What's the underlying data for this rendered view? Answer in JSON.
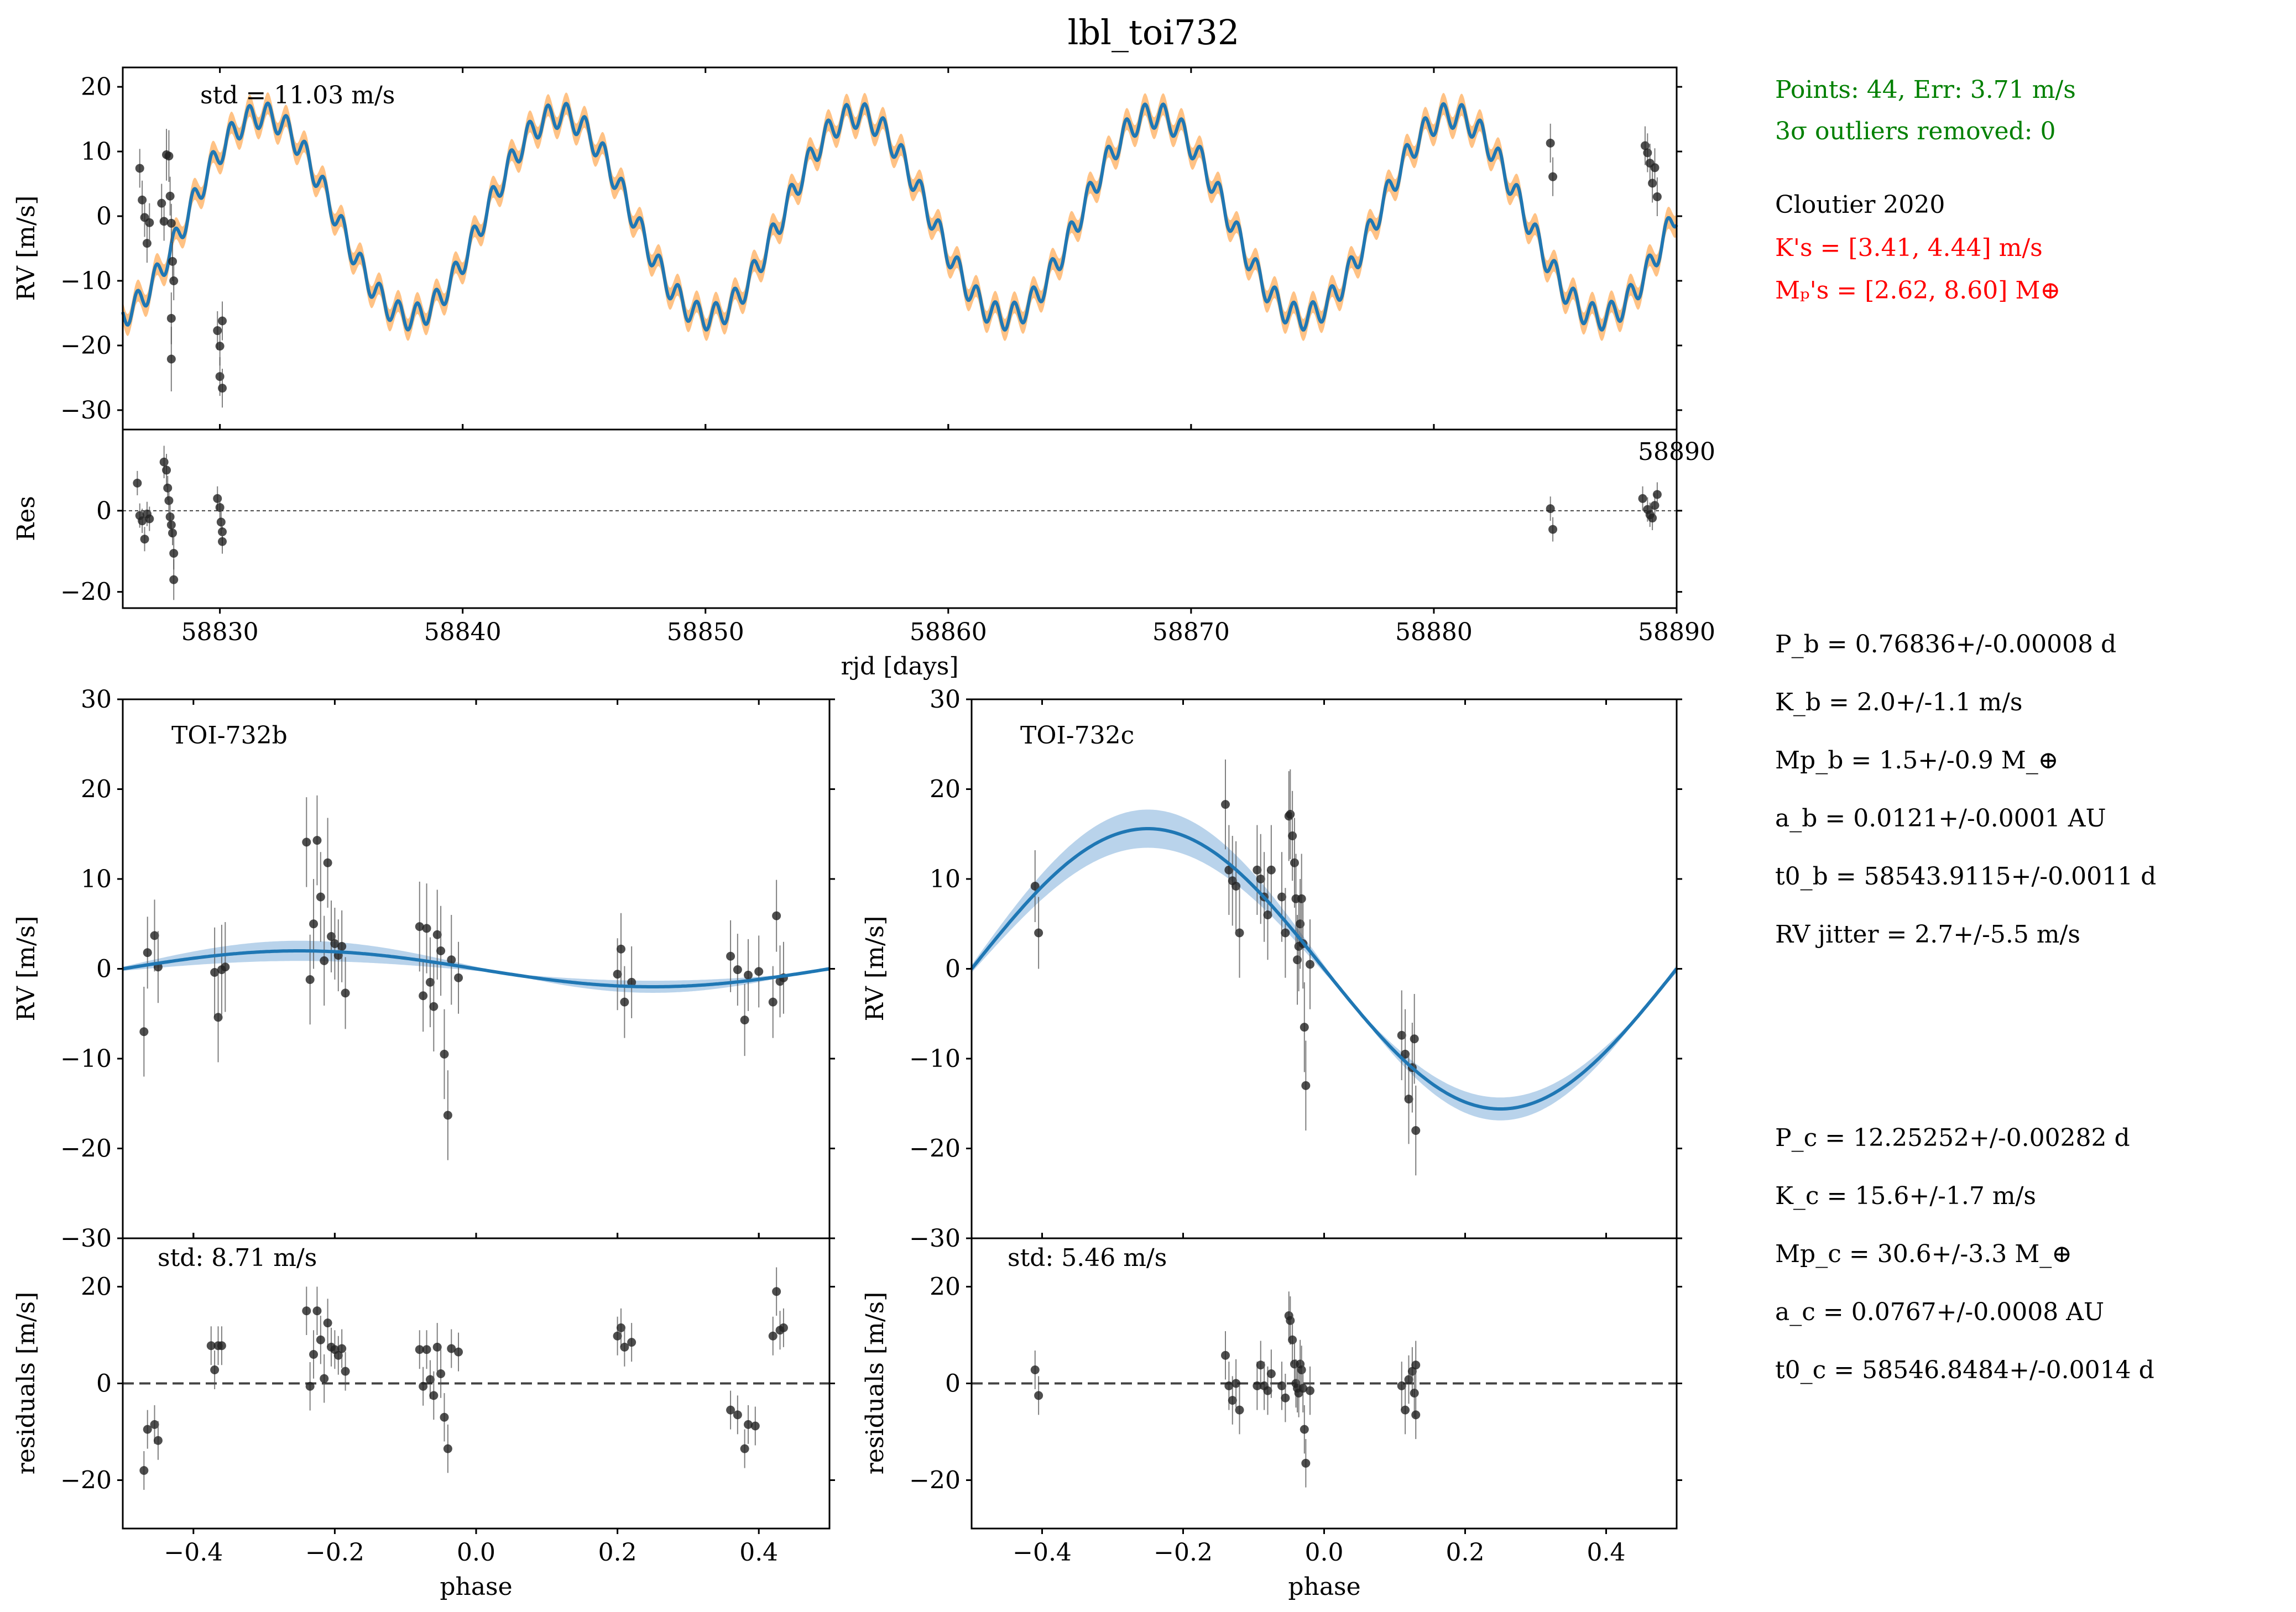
{
  "title": "lbl_toi732",
  "colors": {
    "model": "#1f77b4",
    "band_top": "#ffbb78",
    "band_phase": "#a8c8e6",
    "point": "#222222",
    "green": "#008000",
    "red": "#ff0000"
  },
  "sidebar": {
    "summary": {
      "points_text": "Points: 44, Err: 3.71 m/s",
      "outliers_text": "3σ outliers removed: 0"
    },
    "reference": {
      "name": "Cloutier 2020",
      "k_text": "K's = [3.41, 4.44] m/s",
      "mp_text": "Mₚ's = [2.62, 8.60] M⊕"
    },
    "planet_b": [
      "P_b = 0.76836+/-0.00008 d",
      "K_b = 2.0+/-1.1 m/s",
      "Mp_b = 1.5+/-0.9 M_⊕",
      "a_b = 0.0121+/-0.0001 AU",
      "t0_b = 58543.9115+/-0.0011 d",
      "RV jitter = 2.7+/-5.5 m/s"
    ],
    "planet_c": [
      "P_c = 12.25252+/-0.00282 d",
      "K_c = 15.6+/-1.7 m/s",
      "Mp_c = 30.6+/-3.3 M_⊕",
      "a_c = 0.0767+/-0.0008 AU",
      "t0_c = 58546.8484+/-0.0014 d"
    ]
  },
  "chart_data": [
    {
      "id": "rv_time",
      "type": "line",
      "ylabel": "RV [m/s]",
      "annotation": "std = 11.03 m/s",
      "xlim": [
        58826,
        58890
      ],
      "ylim": [
        -33,
        23
      ],
      "yticks": [
        -30,
        -20,
        -10,
        0,
        10,
        20
      ],
      "stray_tick_label": "58890",
      "model": {
        "K_b": 2.0,
        "P_b": 0.76836,
        "K_c": 15.6,
        "P_c": 12.25252,
        "t0_c": 58546.8484
      },
      "points": [
        [
          58826.7,
          7.4,
          3
        ],
        [
          58826.8,
          2.5,
          3
        ],
        [
          58826.9,
          -0.2,
          3
        ],
        [
          58827.0,
          -4.2,
          3
        ],
        [
          58827.1,
          -1.0,
          3
        ],
        [
          58827.6,
          2.0,
          3
        ],
        [
          58827.7,
          -0.8,
          3
        ],
        [
          58827.8,
          9.5,
          4
        ],
        [
          58827.9,
          9.3,
          4
        ],
        [
          58827.95,
          3.1,
          3
        ],
        [
          58828.0,
          -1.1,
          3
        ],
        [
          58828.05,
          -7.0,
          3
        ],
        [
          58828.1,
          -10.0,
          3
        ],
        [
          58828.0,
          -15.8,
          4
        ],
        [
          58828.0,
          -22.1,
          5
        ],
        [
          58829.9,
          -17.7,
          3
        ],
        [
          58830.0,
          -20.1,
          3
        ],
        [
          58830.0,
          -24.8,
          3
        ],
        [
          58830.1,
          -26.6,
          3
        ],
        [
          58830.1,
          -16.2,
          3
        ],
        [
          58884.8,
          11.3,
          3
        ],
        [
          58884.9,
          6.1,
          3
        ],
        [
          58888.7,
          10.9,
          3
        ],
        [
          58888.8,
          9.8,
          3
        ],
        [
          58888.9,
          8.2,
          3
        ],
        [
          58889.0,
          5.1,
          3
        ],
        [
          58889.1,
          7.5,
          3
        ],
        [
          58889.2,
          3.0,
          3
        ]
      ]
    },
    {
      "id": "res_time",
      "type": "scatter",
      "ylabel": "Res",
      "xlabel": "rjd [days]",
      "xlim": [
        58826,
        58890
      ],
      "ylim": [
        -24,
        20
      ],
      "xticks": [
        58830,
        58840,
        58850,
        58860,
        58870,
        58880,
        58890
      ],
      "yticks": [
        -20,
        0
      ],
      "points": [
        [
          58826.6,
          6.8,
          3
        ],
        [
          58826.7,
          -1.2,
          3
        ],
        [
          58826.8,
          -2.5,
          3
        ],
        [
          58826.9,
          -7.0,
          3
        ],
        [
          58827.0,
          -0.8,
          3
        ],
        [
          58827.1,
          -2.0,
          3
        ],
        [
          58827.7,
          12.0,
          4
        ],
        [
          58827.8,
          10.0,
          4
        ],
        [
          58827.85,
          5.6,
          3
        ],
        [
          58827.9,
          2.5,
          3
        ],
        [
          58827.95,
          -1.5,
          3
        ],
        [
          58828.0,
          -3.5,
          3
        ],
        [
          58828.05,
          -5.5,
          3
        ],
        [
          58828.1,
          -10.5,
          4
        ],
        [
          58828.1,
          -17.0,
          5
        ],
        [
          58829.9,
          3.0,
          3
        ],
        [
          58830.0,
          0.8,
          3
        ],
        [
          58830.05,
          -2.8,
          3
        ],
        [
          58830.1,
          -5.2,
          3
        ],
        [
          58830.1,
          -7.6,
          3
        ],
        [
          58884.8,
          0.5,
          3
        ],
        [
          58884.9,
          -4.6,
          3
        ],
        [
          58888.6,
          3.0,
          3
        ],
        [
          58888.8,
          0.3,
          3
        ],
        [
          58888.9,
          -1.0,
          3
        ],
        [
          58889.0,
          -1.8,
          3
        ],
        [
          58889.1,
          1.3,
          3
        ],
        [
          58889.2,
          4.0,
          3
        ]
      ]
    },
    {
      "id": "phase_b",
      "type": "scatter",
      "ylabel": "RV [m/s]",
      "annotation": "TOI-732b",
      "xlim": [
        -0.5,
        0.5
      ],
      "ylim": [
        -30,
        30
      ],
      "yticks": [
        -30,
        -20,
        -10,
        0,
        10,
        20,
        30
      ],
      "model": {
        "K": 2.0,
        "band": 0.9
      },
      "points": [
        [
          -0.47,
          -7.0,
          5
        ],
        [
          -0.465,
          1.8,
          4
        ],
        [
          -0.455,
          3.7,
          4
        ],
        [
          -0.45,
          0.2,
          4
        ],
        [
          -0.37,
          -0.4,
          5
        ],
        [
          -0.365,
          -5.4,
          5
        ],
        [
          -0.36,
          -0.1,
          5
        ],
        [
          -0.355,
          0.2,
          5
        ],
        [
          -0.24,
          14.1,
          5
        ],
        [
          -0.235,
          -1.2,
          5
        ],
        [
          -0.23,
          5.0,
          5
        ],
        [
          -0.225,
          14.3,
          5
        ],
        [
          -0.22,
          8.0,
          5
        ],
        [
          -0.215,
          0.9,
          5
        ],
        [
          -0.21,
          11.8,
          5
        ],
        [
          -0.205,
          3.6,
          4
        ],
        [
          -0.2,
          2.8,
          4
        ],
        [
          -0.195,
          1.5,
          4
        ],
        [
          -0.19,
          2.5,
          4
        ],
        [
          -0.185,
          -2.7,
          4
        ],
        [
          -0.08,
          4.7,
          5
        ],
        [
          -0.075,
          -3.0,
          4
        ],
        [
          -0.07,
          4.5,
          5
        ],
        [
          -0.065,
          -1.5,
          5
        ],
        [
          -0.06,
          -4.2,
          5
        ],
        [
          -0.055,
          3.8,
          5
        ],
        [
          -0.05,
          2.0,
          5
        ],
        [
          -0.045,
          -9.5,
          5
        ],
        [
          -0.04,
          -16.3,
          5
        ],
        [
          -0.035,
          1.0,
          5
        ],
        [
          -0.025,
          -1.0,
          4
        ],
        [
          0.2,
          -0.6,
          4
        ],
        [
          0.205,
          2.2,
          4
        ],
        [
          0.21,
          -3.7,
          4
        ],
        [
          0.22,
          -1.5,
          4
        ],
        [
          0.36,
          1.4,
          4
        ],
        [
          0.37,
          -0.1,
          4
        ],
        [
          0.38,
          -5.7,
          4
        ],
        [
          0.385,
          -0.7,
          4
        ],
        [
          0.4,
          -0.3,
          4
        ],
        [
          0.42,
          -3.7,
          4
        ],
        [
          0.425,
          5.9,
          4
        ],
        [
          0.43,
          -1.4,
          4
        ],
        [
          0.435,
          -1.0,
          4
        ]
      ]
    },
    {
      "id": "phase_c",
      "type": "scatter",
      "ylabel": "RV [m/s]",
      "annotation": "TOI-732c",
      "xlim": [
        -0.5,
        0.5
      ],
      "ylim": [
        -30,
        30
      ],
      "yticks": [
        -30,
        -20,
        -10,
        0,
        10,
        20,
        30
      ],
      "model": {
        "K": 15.6,
        "band": 1.7
      },
      "points": [
        [
          -0.41,
          9.2,
          4
        ],
        [
          -0.405,
          4.0,
          4
        ],
        [
          -0.14,
          18.3,
          5
        ],
        [
          -0.135,
          11.0,
          5
        ],
        [
          -0.13,
          9.8,
          5
        ],
        [
          -0.125,
          9.2,
          5
        ],
        [
          -0.12,
          4.0,
          5
        ],
        [
          -0.095,
          11.0,
          5
        ],
        [
          -0.09,
          10.0,
          5
        ],
        [
          -0.085,
          8.0,
          5
        ],
        [
          -0.08,
          6.0,
          5
        ],
        [
          -0.075,
          11.0,
          5
        ],
        [
          -0.06,
          8.0,
          5
        ],
        [
          -0.055,
          4.0,
          5
        ],
        [
          -0.05,
          17.0,
          5
        ],
        [
          -0.048,
          17.2,
          5
        ],
        [
          -0.045,
          14.8,
          5
        ],
        [
          -0.042,
          11.8,
          5
        ],
        [
          -0.04,
          7.8,
          5
        ],
        [
          -0.038,
          1.0,
          5
        ],
        [
          -0.036,
          2.5,
          5
        ],
        [
          -0.034,
          5.0,
          5
        ],
        [
          -0.032,
          7.8,
          5
        ],
        [
          -0.03,
          2.8,
          5
        ],
        [
          -0.028,
          -6.5,
          5
        ],
        [
          -0.026,
          -13.0,
          5
        ],
        [
          -0.02,
          0.5,
          5
        ],
        [
          0.11,
          -7.4,
          5
        ],
        [
          0.115,
          -9.5,
          5
        ],
        [
          0.12,
          -14.5,
          5
        ],
        [
          0.125,
          -11.0,
          5
        ],
        [
          0.128,
          -7.8,
          5
        ],
        [
          0.13,
          -18.0,
          5
        ]
      ]
    },
    {
      "id": "res_b",
      "type": "scatter",
      "ylabel": "residuals [m/s]",
      "xlabel": "phase",
      "annotation": "std: 8.71 m/s",
      "xlim": [
        -0.5,
        0.5
      ],
      "ylim": [
        -30,
        30
      ],
      "xticks": [
        -0.4,
        -0.2,
        0.0,
        0.2,
        0.4
      ],
      "yticks": [
        -20,
        0,
        20
      ],
      "points": [
        [
          -0.47,
          -18.0,
          4
        ],
        [
          -0.465,
          -9.5,
          4
        ],
        [
          -0.455,
          -8.5,
          4
        ],
        [
          -0.45,
          -11.8,
          4
        ],
        [
          -0.375,
          7.8,
          4
        ],
        [
          -0.37,
          2.8,
          4
        ],
        [
          -0.365,
          7.8,
          4
        ],
        [
          -0.36,
          7.8,
          4
        ],
        [
          -0.24,
          15.0,
          5
        ],
        [
          -0.235,
          -0.6,
          5
        ],
        [
          -0.23,
          6.0,
          5
        ],
        [
          -0.225,
          15.0,
          5
        ],
        [
          -0.22,
          9.0,
          5
        ],
        [
          -0.215,
          1.0,
          5
        ],
        [
          -0.21,
          12.5,
          5
        ],
        [
          -0.205,
          7.5,
          4
        ],
        [
          -0.2,
          7.0,
          4
        ],
        [
          -0.195,
          5.8,
          4
        ],
        [
          -0.19,
          7.2,
          4
        ],
        [
          -0.185,
          2.5,
          4
        ],
        [
          -0.08,
          7.0,
          4
        ],
        [
          -0.075,
          -0.6,
          4
        ],
        [
          -0.07,
          7.0,
          4
        ],
        [
          -0.065,
          0.8,
          4
        ],
        [
          -0.06,
          -2.5,
          5
        ],
        [
          -0.055,
          7.5,
          5
        ],
        [
          -0.05,
          2.0,
          5
        ],
        [
          -0.045,
          -7.0,
          5
        ],
        [
          -0.04,
          -13.5,
          5
        ],
        [
          -0.035,
          7.2,
          4
        ],
        [
          -0.025,
          6.5,
          4
        ],
        [
          0.2,
          9.8,
          4
        ],
        [
          0.205,
          11.5,
          4
        ],
        [
          0.21,
          7.5,
          4
        ],
        [
          0.22,
          8.5,
          4
        ],
        [
          0.36,
          -5.5,
          4
        ],
        [
          0.37,
          -6.5,
          4
        ],
        [
          0.38,
          -13.5,
          4
        ],
        [
          0.385,
          -8.5,
          4
        ],
        [
          0.395,
          -8.8,
          4
        ],
        [
          0.42,
          9.8,
          4
        ],
        [
          0.425,
          19.0,
          5
        ],
        [
          0.43,
          11.0,
          4
        ],
        [
          0.435,
          11.5,
          4
        ]
      ]
    },
    {
      "id": "res_c",
      "type": "scatter",
      "ylabel": "residuals [m/s]",
      "xlabel": "phase",
      "annotation": "std: 5.46 m/s",
      "xlim": [
        -0.5,
        0.5
      ],
      "ylim": [
        -30,
        30
      ],
      "xticks": [
        -0.4,
        -0.2,
        0.0,
        0.2,
        0.4
      ],
      "yticks": [
        -20,
        0,
        20
      ],
      "points": [
        [
          -0.41,
          2.8,
          4
        ],
        [
          -0.405,
          -2.5,
          4
        ],
        [
          -0.14,
          5.8,
          5
        ],
        [
          -0.135,
          -0.5,
          5
        ],
        [
          -0.13,
          -3.5,
          5
        ],
        [
          -0.125,
          0.0,
          5
        ],
        [
          -0.12,
          -5.5,
          5
        ],
        [
          -0.095,
          -0.5,
          5
        ],
        [
          -0.09,
          3.8,
          5
        ],
        [
          -0.085,
          -0.5,
          5
        ],
        [
          -0.08,
          -1.5,
          5
        ],
        [
          -0.075,
          2.0,
          5
        ],
        [
          -0.06,
          -0.5,
          5
        ],
        [
          -0.055,
          -3.0,
          5
        ],
        [
          -0.05,
          14.0,
          5
        ],
        [
          -0.048,
          13.0,
          5
        ],
        [
          -0.045,
          9.0,
          5
        ],
        [
          -0.042,
          4.0,
          5
        ],
        [
          -0.04,
          0.0,
          5
        ],
        [
          -0.038,
          -1.0,
          5
        ],
        [
          -0.036,
          -2.0,
          5
        ],
        [
          -0.034,
          4.0,
          5
        ],
        [
          -0.032,
          2.8,
          5
        ],
        [
          -0.03,
          -1.0,
          5
        ],
        [
          -0.028,
          -9.5,
          5
        ],
        [
          -0.026,
          -16.5,
          5
        ],
        [
          -0.02,
          -1.5,
          5
        ],
        [
          0.11,
          -0.5,
          5
        ],
        [
          0.115,
          -5.5,
          5
        ],
        [
          0.12,
          0.8,
          5
        ],
        [
          0.125,
          2.5,
          5
        ],
        [
          0.128,
          -2.0,
          5
        ],
        [
          0.13,
          -6.5,
          5
        ],
        [
          0.13,
          3.8,
          5
        ]
      ]
    }
  ]
}
